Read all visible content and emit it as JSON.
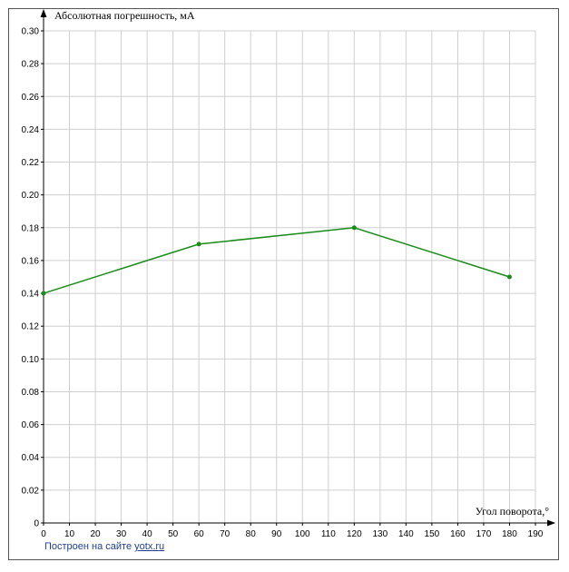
{
  "chart_data": {
    "type": "line",
    "title": "",
    "ylabel": "Абсолютная погрешность, мА",
    "xlabel": "Угол поворота,°",
    "xlim": [
      0,
      190
    ],
    "ylim": [
      0,
      0.3
    ],
    "x_ticks": [
      "0",
      "10",
      "20",
      "30",
      "40",
      "50",
      "60",
      "70",
      "80",
      "90",
      "100",
      "110",
      "120",
      "130",
      "140",
      "150",
      "160",
      "170",
      "180",
      "190"
    ],
    "y_ticks": [
      "0",
      "0.02",
      "0.04",
      "0.06",
      "0.08",
      "0.10",
      "0.12",
      "0.14",
      "0.16",
      "0.18",
      "0.20",
      "0.22",
      "0.24",
      "0.26",
      "0.28",
      "0.30"
    ],
    "grid": true,
    "series": [
      {
        "x": [
          0,
          60,
          120,
          180
        ],
        "y": [
          0.14,
          0.17,
          0.18,
          0.15
        ],
        "color": "#1a8c1a"
      }
    ]
  },
  "credit": {
    "prefix": "Построен на сайте ",
    "link_text": "yotx.ru"
  }
}
